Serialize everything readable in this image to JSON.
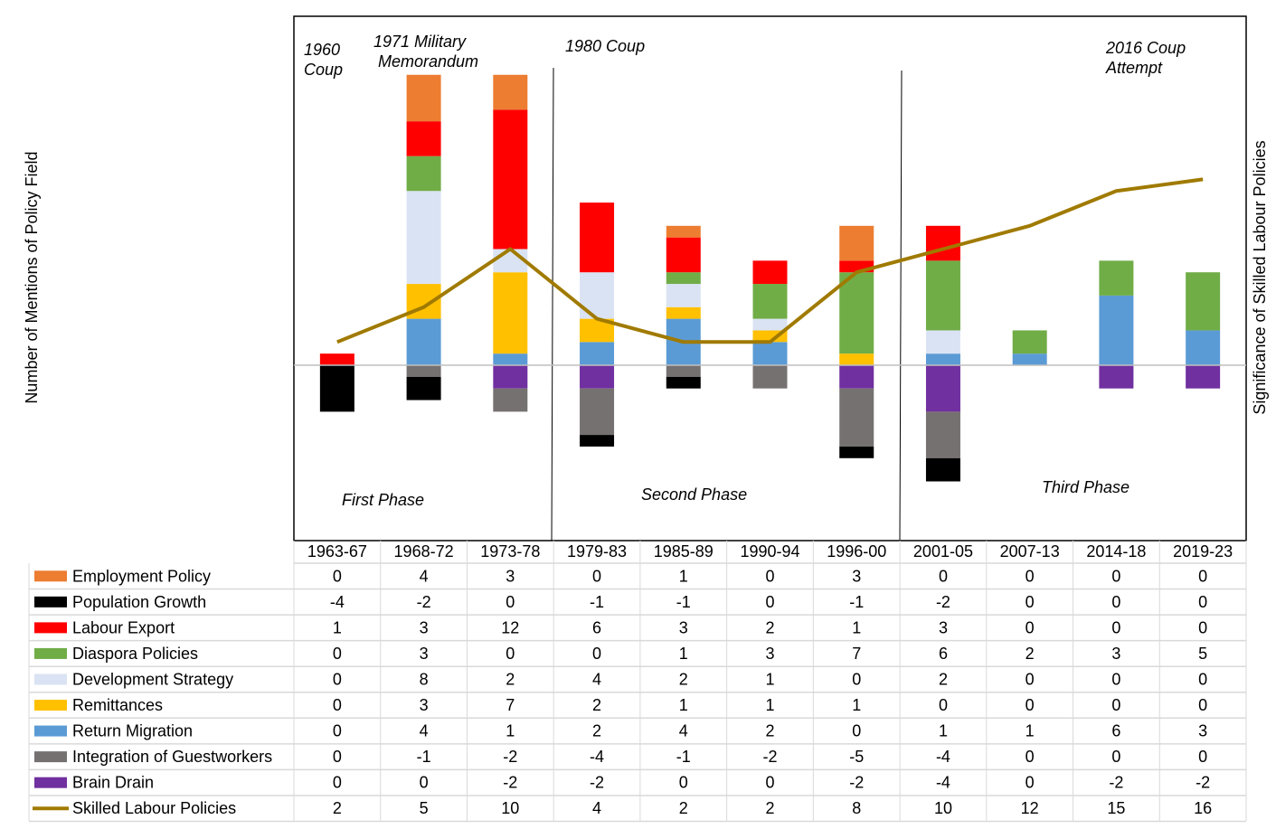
{
  "chart_data": {
    "type": "bar",
    "stacked": true,
    "ylabel_left": "Number of Mentions of Policy Field",
    "ylabel_right": "Significance of Skilled Labour Policies",
    "grid": false,
    "categories": [
      "1963-67",
      "1968-72",
      "1973-78",
      "1979-83",
      "1985-89",
      "1990-94",
      "1996-00",
      "2001-05",
      "2007-13",
      "2014-18",
      "2019-23"
    ],
    "series": [
      {
        "name": "Employment Policy",
        "color": "#ED7D31",
        "values": [
          0,
          4,
          3,
          0,
          1,
          0,
          3,
          0,
          0,
          0,
          0
        ]
      },
      {
        "name": "Population Growth",
        "color": "#000000",
        "values": [
          -4,
          -2,
          0,
          -1,
          -1,
          0,
          -1,
          -2,
          0,
          0,
          0
        ]
      },
      {
        "name": "Labour Export",
        "color": "#FF0000",
        "values": [
          1,
          3,
          12,
          6,
          3,
          2,
          1,
          3,
          0,
          0,
          0
        ]
      },
      {
        "name": "Diaspora Policies",
        "color": "#70AD47",
        "values": [
          0,
          3,
          0,
          0,
          1,
          3,
          7,
          6,
          2,
          3,
          5
        ]
      },
      {
        "name": "Development Strategy",
        "color": "#DAE3F3",
        "values": [
          0,
          8,
          2,
          4,
          2,
          1,
          0,
          2,
          0,
          0,
          0
        ]
      },
      {
        "name": "Remittances",
        "color": "#FFC000",
        "values": [
          0,
          3,
          7,
          2,
          1,
          1,
          1,
          0,
          0,
          0,
          0
        ]
      },
      {
        "name": "Return Migration",
        "color": "#5B9BD5",
        "values": [
          0,
          4,
          1,
          2,
          4,
          2,
          0,
          1,
          1,
          6,
          3
        ]
      },
      {
        "name": "Integration of Guestworkers",
        "color": "#767171",
        "values": [
          0,
          -1,
          -2,
          -4,
          -1,
          -2,
          -5,
          -4,
          0,
          0,
          0
        ]
      },
      {
        "name": "Brain Drain",
        "color": "#7030A0",
        "values": [
          0,
          0,
          -2,
          -2,
          0,
          0,
          -2,
          -4,
          0,
          -2,
          -2
        ]
      }
    ],
    "line_series": {
      "name": "Skilled Labour Policies",
      "color": "#A07A00",
      "values": [
        2,
        5,
        10,
        4,
        2,
        2,
        8,
        10,
        12,
        15,
        16
      ]
    },
    "stack_order_positive": [
      "Return Migration",
      "Remittances",
      "Development Strategy",
      "Diaspora Policies",
      "Labour Export",
      "Employment Policy"
    ],
    "stack_order_negative": [
      "Brain Drain",
      "Integration of Guestworkers",
      "Population Growth"
    ],
    "ylim": [
      -15,
      30
    ],
    "annotations": [
      {
        "text": [
          "1960",
          "Coup"
        ]
      },
      {
        "text": [
          "1971 Military",
          "Memorandum"
        ]
      },
      {
        "text": [
          "1980 Coup"
        ]
      },
      {
        "text": [
          "2016 Coup",
          "Attempt"
        ]
      },
      {
        "text": [
          "First Phase"
        ]
      },
      {
        "text": [
          "Second Phase"
        ]
      },
      {
        "text": [
          "Third Phase"
        ]
      }
    ],
    "data_table": true
  }
}
